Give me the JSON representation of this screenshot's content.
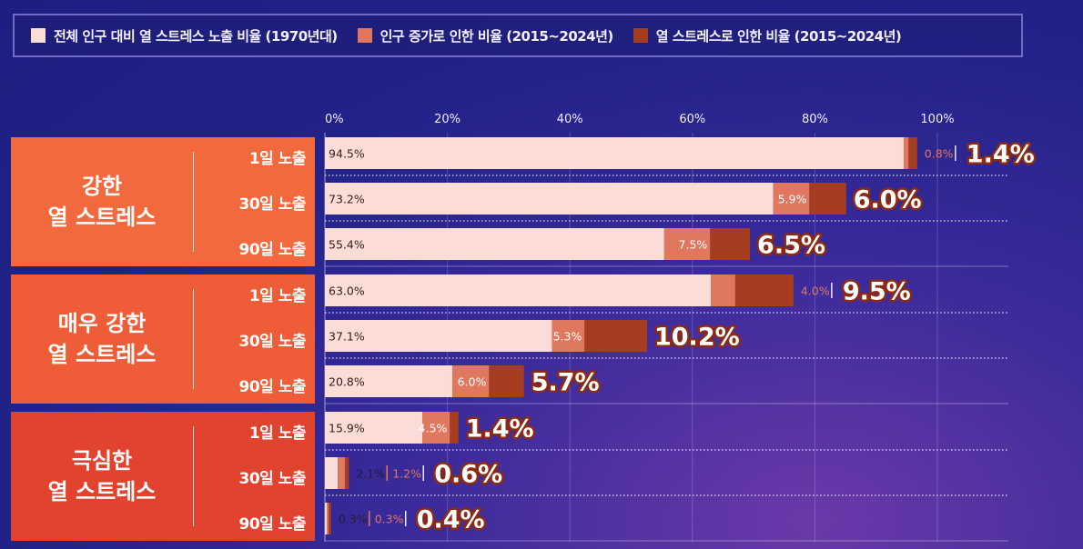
{
  "colors": {
    "base": "#fbdcd6",
    "population": "#e0775f",
    "heat": "#a63d20",
    "total_text": "#ffffff",
    "total_stroke": "#8c2a12"
  },
  "legend": [
    {
      "label": "전체 인구 대비 열 스트레스 노출 비율 (1970년대)",
      "color": "#fbdcd6"
    },
    {
      "label": "인구 증가로 인한 비율 (2015~2024년)",
      "color": "#e0775f"
    },
    {
      "label": "열 스트레스로 인한 비율 (2015~2024년)",
      "color": "#a63d20"
    }
  ],
  "chart_data": {
    "type": "bar",
    "orientation": "horizontal",
    "stacked": true,
    "xlim": [
      0,
      100
    ],
    "x_ticks": [
      "0%",
      "20%",
      "40%",
      "60%",
      "80%",
      "100%"
    ],
    "groups": [
      {
        "name": "강한\n열 스트레스",
        "color": "#f2693d",
        "rows": [
          {
            "label": "1일 노출",
            "base": 94.5,
            "population": 0.8,
            "heat": 1.4,
            "base_label": "94.5%",
            "pop_label": "0.8%",
            "heat_label": "1.4%"
          },
          {
            "label": "30일 노출",
            "base": 73.2,
            "population": 5.9,
            "heat": 6.0,
            "base_label": "73.2%",
            "pop_label": "5.9%",
            "heat_label": "6.0%"
          },
          {
            "label": "90일 노출",
            "base": 55.4,
            "population": 7.5,
            "heat": 6.5,
            "base_label": "55.4%",
            "pop_label": "7.5%",
            "heat_label": "6.5%"
          }
        ]
      },
      {
        "name": "매우 강한\n열 스트레스",
        "color": "#ee5d37",
        "rows": [
          {
            "label": "1일 노출",
            "base": 63.0,
            "population": 4.0,
            "heat": 9.5,
            "base_label": "63.0%",
            "pop_label": "4.0%",
            "heat_label": "9.5%"
          },
          {
            "label": "30일 노출",
            "base": 37.1,
            "population": 5.3,
            "heat": 10.2,
            "base_label": "37.1%",
            "pop_label": "5.3%",
            "heat_label": "10.2%"
          },
          {
            "label": "90일 노출",
            "base": 20.8,
            "population": 6.0,
            "heat": 5.7,
            "base_label": "20.8%",
            "pop_label": "6.0%",
            "heat_label": "5.7%"
          }
        ]
      },
      {
        "name": "극심한\n열 스트레스",
        "color": "#e2432f",
        "rows": [
          {
            "label": "1일 노출",
            "base": 15.9,
            "population": 4.5,
            "heat": 1.4,
            "base_label": "15.9%",
            "pop_label": "4.5%",
            "heat_label": "1.4%"
          },
          {
            "label": "30일 노출",
            "base": 2.1,
            "population": 1.2,
            "heat": 0.6,
            "base_label": "2.1%",
            "pop_label": "1.2%",
            "heat_label": "0.6%"
          },
          {
            "label": "90일 노출",
            "base": 0.3,
            "population": 0.3,
            "heat": 0.4,
            "base_label": "0.3%",
            "pop_label": "0.3%",
            "heat_label": "0.4%"
          }
        ]
      }
    ]
  }
}
